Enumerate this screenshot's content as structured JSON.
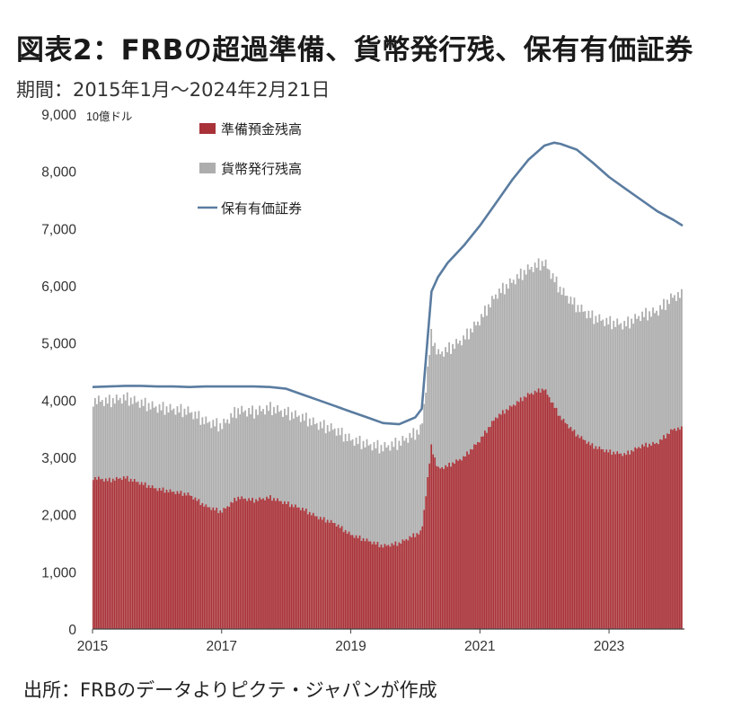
{
  "title": "図表2：FRBの超過準備、貨幣発行残、保有有価証券",
  "subtitle": "期間：2015年1月～2024年2月21日",
  "source": "出所：FRBのデータよりピクテ・ジャパンが作成",
  "colors": {
    "reserves": "#a83238",
    "currency": "#adadad",
    "securities": "#5a7ca0"
  },
  "chart_data": {
    "type": "area",
    "unit_label": "10億ドル",
    "ylim": [
      0,
      9000
    ],
    "yticks": [
      0,
      1000,
      2000,
      3000,
      4000,
      5000,
      6000,
      7000,
      8000,
      9000
    ],
    "ytick_labels": [
      "0",
      "1,000",
      "2,000",
      "3,000",
      "4,000",
      "5,000",
      "6,000",
      "7,000",
      "8,000",
      "9,000"
    ],
    "xlim": [
      2015,
      2024.14
    ],
    "xticks": [
      2015,
      2017,
      2019,
      2021,
      2023
    ],
    "xtick_labels": [
      "2015",
      "2017",
      "2019",
      "2021",
      "2023"
    ],
    "legend_position": "top-left",
    "x": [
      2015.0,
      2015.25,
      2015.5,
      2015.75,
      2016.0,
      2016.25,
      2016.5,
      2016.75,
      2017.0,
      2017.25,
      2017.5,
      2017.75,
      2018.0,
      2018.25,
      2018.5,
      2018.75,
      2019.0,
      2019.25,
      2019.5,
      2019.75,
      2020.0,
      2020.1,
      2020.25,
      2020.35,
      2020.5,
      2020.75,
      2021.0,
      2021.25,
      2021.5,
      2021.75,
      2022.0,
      2022.15,
      2022.25,
      2022.5,
      2022.75,
      2023.0,
      2023.25,
      2023.5,
      2023.75,
      2024.0,
      2024.14
    ],
    "series": [
      {
        "name": "準備預金残高",
        "key": "reserves",
        "style": "bar",
        "values": [
          2650,
          2600,
          2650,
          2550,
          2450,
          2400,
          2350,
          2150,
          2050,
          2300,
          2250,
          2300,
          2200,
          2100,
          1950,
          1850,
          1650,
          1550,
          1450,
          1500,
          1650,
          1700,
          3200,
          2800,
          2850,
          3000,
          3300,
          3700,
          3900,
          4100,
          4200,
          3900,
          3700,
          3400,
          3200,
          3100,
          3050,
          3200,
          3250,
          3500,
          3500
        ]
      },
      {
        "name": "貨幣発行残高",
        "key": "currency",
        "style": "bar",
        "values": [
          1350,
          1380,
          1390,
          1400,
          1420,
          1440,
          1450,
          1480,
          1500,
          1520,
          1540,
          1560,
          1580,
          1600,
          1620,
          1640,
          1660,
          1680,
          1720,
          1750,
          1770,
          1800,
          1950,
          2000,
          2030,
          2070,
          2100,
          2140,
          2170,
          2190,
          2210,
          2220,
          2230,
          2240,
          2250,
          2260,
          2270,
          2280,
          2300,
          2320,
          2330
        ]
      },
      {
        "name": "保有有価証券",
        "key": "securities",
        "style": "line",
        "values": [
          4230,
          4240,
          4250,
          4250,
          4240,
          4240,
          4230,
          4240,
          4240,
          4240,
          4240,
          4230,
          4200,
          4100,
          4000,
          3900,
          3800,
          3700,
          3600,
          3580,
          3700,
          3850,
          5900,
          6150,
          6400,
          6700,
          7050,
          7450,
          7850,
          8200,
          8450,
          8500,
          8480,
          8380,
          8150,
          7900,
          7700,
          7500,
          7300,
          7150,
          7050
        ]
      }
    ]
  }
}
